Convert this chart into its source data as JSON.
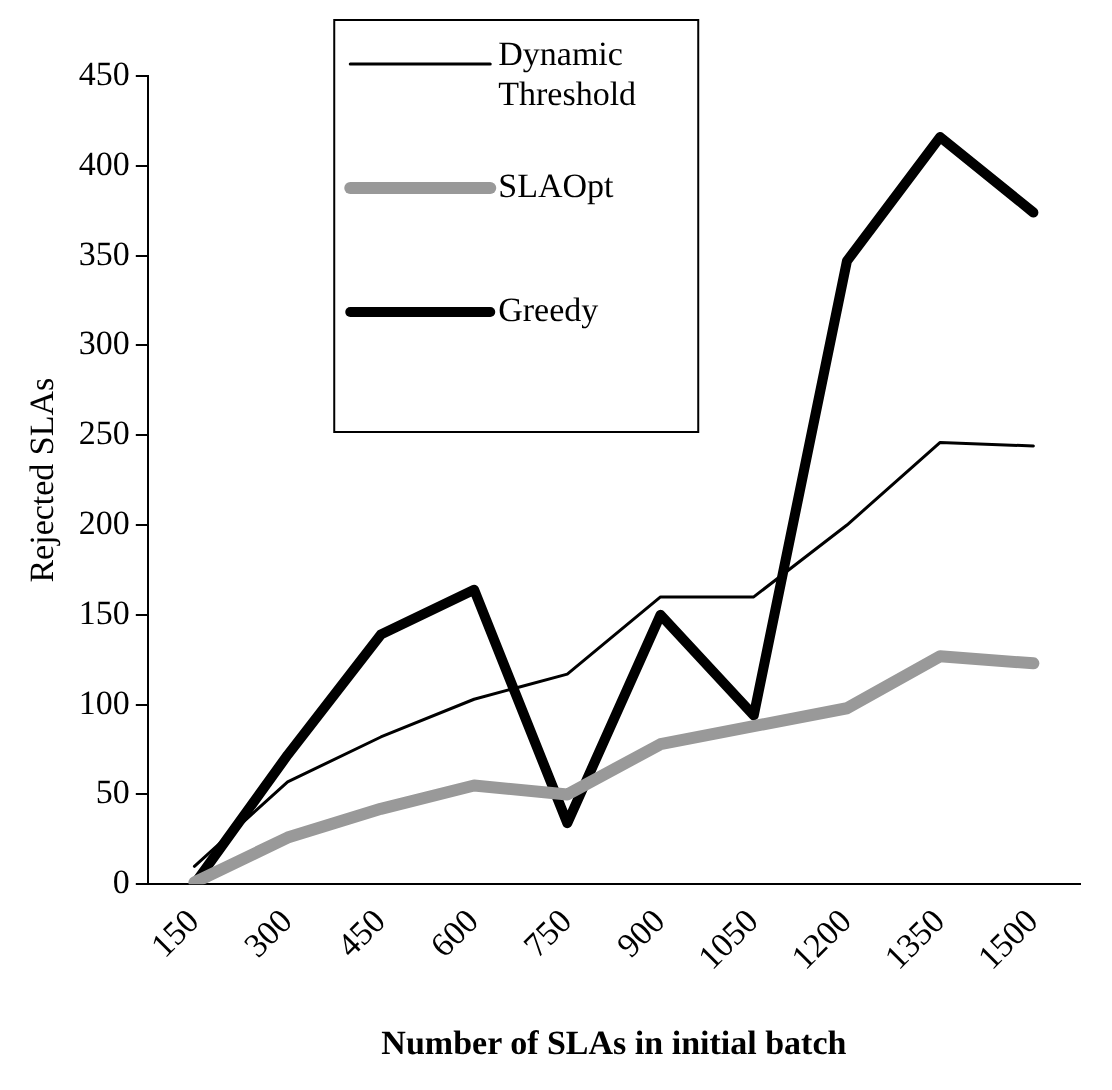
{
  "chart_data": {
    "type": "line",
    "xlabel": "Number of SLAs in initial batch",
    "ylabel": "Rejected SLAs",
    "categories": [
      "150",
      "300",
      "450",
      "600",
      "750",
      "900",
      "1050",
      "1200",
      "1350",
      "1500"
    ],
    "series": [
      {
        "name": "Dynamic Threshold",
        "color": "#000000",
        "values": [
          10,
          57,
          82,
          103,
          117,
          160,
          160,
          200,
          246,
          244
        ]
      },
      {
        "name": "SLAOpt",
        "color": "#999999",
        "values": [
          1,
          26,
          42,
          55,
          50,
          78,
          88,
          98,
          127,
          123
        ]
      },
      {
        "name": "Greedy",
        "color": "#000000",
        "values": [
          0,
          72,
          139,
          164,
          34,
          150,
          94,
          347,
          416,
          374
        ]
      }
    ],
    "ylim": [
      0,
      450
    ],
    "yticks": [
      0,
      50,
      100,
      150,
      200,
      250,
      300,
      350,
      400,
      450
    ],
    "grid": false,
    "legend": "top",
    "marker": "none",
    "line_style": "solid"
  }
}
